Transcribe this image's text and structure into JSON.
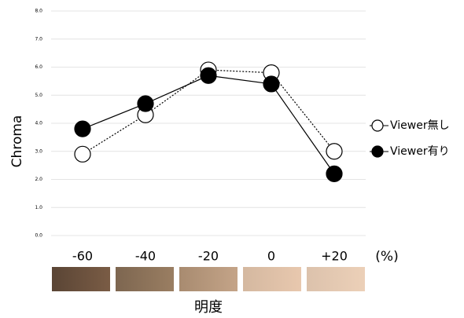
{
  "chart_data": {
    "type": "line",
    "ylabel": "Chroma",
    "xlabel": "明度",
    "x_unit": "(%)",
    "categories": [
      "-60",
      "-40",
      "-20",
      "0",
      "+20"
    ],
    "series": [
      {
        "name": "Viewer無し",
        "color": "#000000",
        "marker_fill": "#ffffff",
        "line_style": "dotted",
        "values": [
          2.9,
          4.3,
          5.9,
          5.8,
          3.0
        ]
      },
      {
        "name": "Viewer有り",
        "color": "#000000",
        "marker_fill": "#000000",
        "line_style": "solid",
        "values": [
          3.8,
          4.7,
          5.7,
          5.4,
          2.2
        ]
      }
    ],
    "ylim": [
      0,
      8
    ],
    "yticks": [
      {
        "value": 0,
        "label": "0.0"
      },
      {
        "value": 1,
        "label": "1.0"
      },
      {
        "value": 2,
        "label": "2.0"
      },
      {
        "value": 3,
        "label": "3.0"
      },
      {
        "value": 4,
        "label": "4.0"
      },
      {
        "value": 5,
        "label": "5.0"
      },
      {
        "value": 6,
        "label": "6.0"
      },
      {
        "value": 7,
        "label": "7.0"
      },
      {
        "value": 8,
        "label": "8.0"
      }
    ],
    "grid": true,
    "legend": "right"
  }
}
